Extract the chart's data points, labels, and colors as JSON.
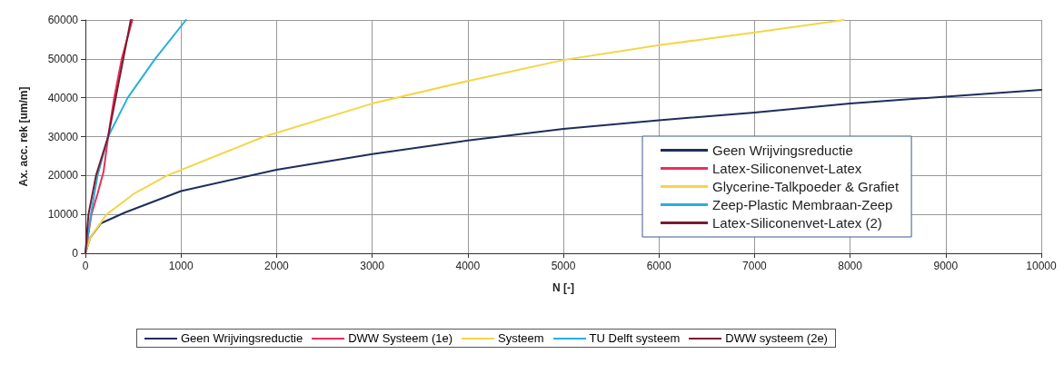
{
  "chart_data": {
    "type": "line",
    "xlabel": "N [-]",
    "ylabel": "Ax. acc. rek [um/m]",
    "xlim": [
      0,
      10000
    ],
    "xticks": [
      0,
      1000,
      2000,
      3000,
      4000,
      5000,
      6000,
      7000,
      8000,
      9000,
      10000
    ],
    "ylim": [
      0,
      60000
    ],
    "yticks": [
      0,
      10000,
      20000,
      30000,
      40000,
      50000,
      60000
    ],
    "grid": true,
    "legend": "right",
    "marker": "none",
    "line_style": "solid",
    "series": [
      {
        "name": "Geen Wrijvingsreductie",
        "color": "#1f2d5c",
        "x": [
          0,
          50,
          162,
          416,
          1000,
          2000,
          3000,
          4000,
          5000,
          6000,
          7000,
          8000,
          9000,
          10000
        ],
        "values": [
          0,
          4000,
          7700,
          10500,
          16000,
          21500,
          25500,
          29000,
          32000,
          34200,
          36200,
          38500,
          40300,
          42000
        ]
      },
      {
        "name": "Latex-Siliconenvet-Latex",
        "color": "#e8305a",
        "x": [
          0,
          63,
          127,
          190,
          238,
          301,
          380,
          491
        ],
        "values": [
          0,
          10000,
          15300,
          21000,
          30000,
          40000,
          50000,
          60000
        ]
      },
      {
        "name": "Glycerine-Talkpoeder & Grafiet",
        "color": "#f5d547",
        "x": [
          0,
          50,
          222,
          507,
          855,
          1870,
          3000,
          4000,
          5000,
          6000,
          7000,
          7935
        ],
        "values": [
          0,
          4000,
          10000,
          15300,
          20000,
          30000,
          38500,
          44300,
          49700,
          53500,
          56800,
          60000
        ]
      },
      {
        "name": "Zeep-Plastic Membraan-Zeep",
        "color": "#29aee0",
        "x": [
          0,
          57,
          127,
          238,
          443,
          729,
          1052
        ],
        "values": [
          0,
          10000,
          20000,
          30000,
          40000,
          50000,
          60000
        ]
      },
      {
        "name": "Latex-Siliconenvet-Latex (2)",
        "color": "#7b1a2e",
        "x": [
          0,
          32,
          111,
          238,
          475
        ],
        "values": [
          0,
          10000,
          20000,
          30000,
          60000
        ]
      }
    ],
    "annotations": [
      "Geen Wrijvingsreductie",
      "DWW Systeem (1e)",
      "Systeem",
      "TU Delft systeem",
      "DWW systeem (2e)"
    ]
  }
}
